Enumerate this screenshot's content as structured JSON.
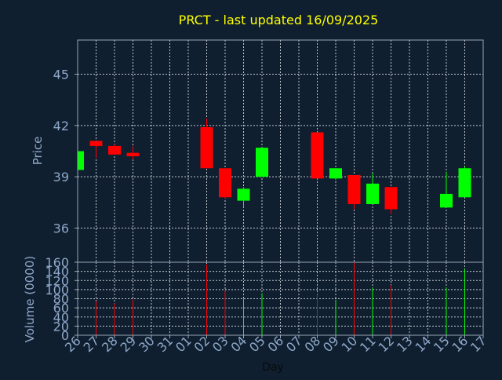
{
  "colors": {
    "background": "#0f1f30",
    "frame": "#9aa6b4",
    "grid": "#ffffff",
    "title": "#ffff00",
    "axis_text": "#8fa8c8",
    "up": "#00ff00",
    "down": "#ff0000"
  },
  "chart_data": [
    {
      "type": "candlestick",
      "title": "PRCT - last updated 16/09/2025",
      "ylabel": "Price",
      "xlabel": "",
      "ylim": [
        34.0,
        47.0
      ],
      "yticks": [
        36,
        39,
        42,
        45
      ],
      "grid": true,
      "categories": [
        "26",
        "27",
        "28",
        "29",
        "30",
        "31",
        "01",
        "02",
        "03",
        "04",
        "05",
        "06",
        "07",
        "08",
        "09",
        "10",
        "11",
        "12",
        "13",
        "14",
        "15",
        "16",
        "17"
      ],
      "candles": [
        {
          "day": "26",
          "open": 39.4,
          "close": 40.5,
          "high": 40.5,
          "low": 39.4
        },
        {
          "day": "27",
          "open": 41.1,
          "close": 40.8,
          "high": 41.1,
          "low": 40.1
        },
        {
          "day": "28",
          "open": 40.8,
          "close": 40.3,
          "high": 40.9,
          "low": 40.3
        },
        {
          "day": "29",
          "open": 40.4,
          "close": 40.2,
          "high": 40.8,
          "low": 40.0
        },
        {
          "day": "02",
          "open": 41.9,
          "close": 39.5,
          "high": 42.4,
          "low": 39.5
        },
        {
          "day": "03",
          "open": 39.5,
          "close": 37.8,
          "high": 39.5,
          "low": 37.7
        },
        {
          "day": "04",
          "open": 37.6,
          "close": 38.3,
          "high": 38.4,
          "low": 37.2
        },
        {
          "day": "05",
          "open": 39.0,
          "close": 40.7,
          "high": 40.7,
          "low": 39.0
        },
        {
          "day": "08",
          "open": 41.6,
          "close": 38.9,
          "high": 41.6,
          "low": 38.9
        },
        {
          "day": "09",
          "open": 38.9,
          "close": 39.5,
          "high": 39.5,
          "low": 38.8
        },
        {
          "day": "10",
          "open": 39.1,
          "close": 37.4,
          "high": 39.1,
          "low": 37.1
        },
        {
          "day": "11",
          "open": 37.4,
          "close": 38.6,
          "high": 39.2,
          "low": 37.4
        },
        {
          "day": "12",
          "open": 38.4,
          "close": 37.1,
          "high": 38.4,
          "low": 36.8
        },
        {
          "day": "15",
          "open": 37.2,
          "close": 38.0,
          "high": 39.3,
          "low": 37.2
        },
        {
          "day": "16",
          "open": 37.8,
          "close": 39.5,
          "high": 39.6,
          "low": 37.8
        }
      ]
    },
    {
      "type": "bar",
      "title": "",
      "ylabel": "Volume (0000)",
      "xlabel": "Day",
      "ylim": [
        0,
        160
      ],
      "yticks": [
        0,
        20,
        40,
        60,
        80,
        100,
        120,
        140,
        160
      ],
      "grid": true,
      "categories": [
        "26",
        "27",
        "28",
        "29",
        "30",
        "31",
        "01",
        "02",
        "03",
        "04",
        "05",
        "06",
        "07",
        "08",
        "09",
        "10",
        "11",
        "12",
        "13",
        "14",
        "15",
        "16",
        "17"
      ],
      "bars": [
        {
          "day": "27",
          "value": 75,
          "direction": "down"
        },
        {
          "day": "28",
          "value": 70,
          "direction": "down"
        },
        {
          "day": "29",
          "value": 78,
          "direction": "down"
        },
        {
          "day": "02",
          "value": 155,
          "direction": "down"
        },
        {
          "day": "03",
          "value": 97,
          "direction": "down"
        },
        {
          "day": "04",
          "value": 80,
          "direction": "up"
        },
        {
          "day": "05",
          "value": 92,
          "direction": "up"
        },
        {
          "day": "08",
          "value": 90,
          "direction": "down"
        },
        {
          "day": "09",
          "value": 78,
          "direction": "up"
        },
        {
          "day": "10",
          "value": 160,
          "direction": "down"
        },
        {
          "day": "11",
          "value": 105,
          "direction": "up"
        },
        {
          "day": "12",
          "value": 110,
          "direction": "down"
        },
        {
          "day": "15",
          "value": 105,
          "direction": "up"
        },
        {
          "day": "16",
          "value": 145,
          "direction": "up"
        }
      ]
    }
  ]
}
